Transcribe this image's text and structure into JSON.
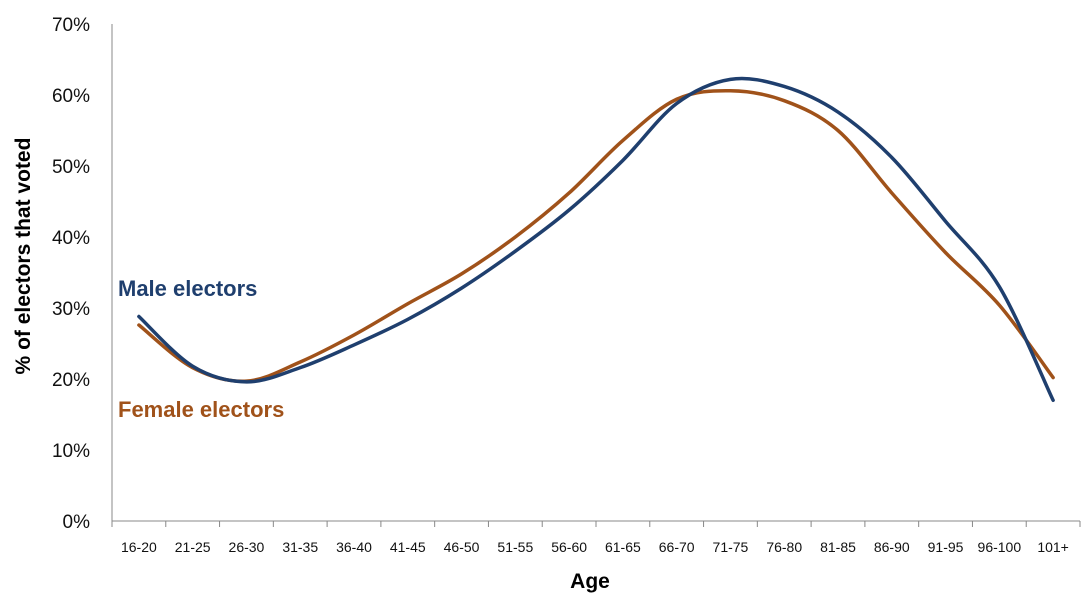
{
  "chart_data": {
    "type": "line",
    "title": "",
    "xlabel": "Age",
    "ylabel": "% of electors that voted",
    "categories": [
      "16-20",
      "21-25",
      "26-30",
      "31-35",
      "36-40",
      "41-45",
      "46-50",
      "51-55",
      "56-60",
      "61-65",
      "66-70",
      "71-75",
      "76-80",
      "81-85",
      "86-90",
      "91-95",
      "96-100",
      "101+"
    ],
    "ylim": [
      0,
      70
    ],
    "yticks": [
      "0%",
      "10%",
      "20%",
      "30%",
      "40%",
      "50%",
      "60%",
      "70%"
    ],
    "ytick_values": [
      0,
      10,
      20,
      30,
      40,
      50,
      60,
      70
    ],
    "grid": false,
    "series": [
      {
        "name": "Male electors",
        "color": "#1f3f6e",
        "values": [
          28.8,
          21.8,
          19.6,
          21.6,
          24.8,
          28.4,
          32.8,
          38.0,
          43.8,
          50.8,
          58.8,
          62.2,
          61.2,
          57.6,
          51.2,
          42.2,
          33.0,
          17.0
        ]
      },
      {
        "name": "Female electors",
        "color": "#a0521a",
        "values": [
          27.6,
          21.6,
          19.7,
          22.4,
          26.2,
          30.6,
          34.8,
          40.0,
          46.2,
          53.6,
          59.4,
          60.6,
          59.2,
          55.0,
          46.2,
          37.8,
          30.4,
          20.2
        ]
      }
    ]
  }
}
